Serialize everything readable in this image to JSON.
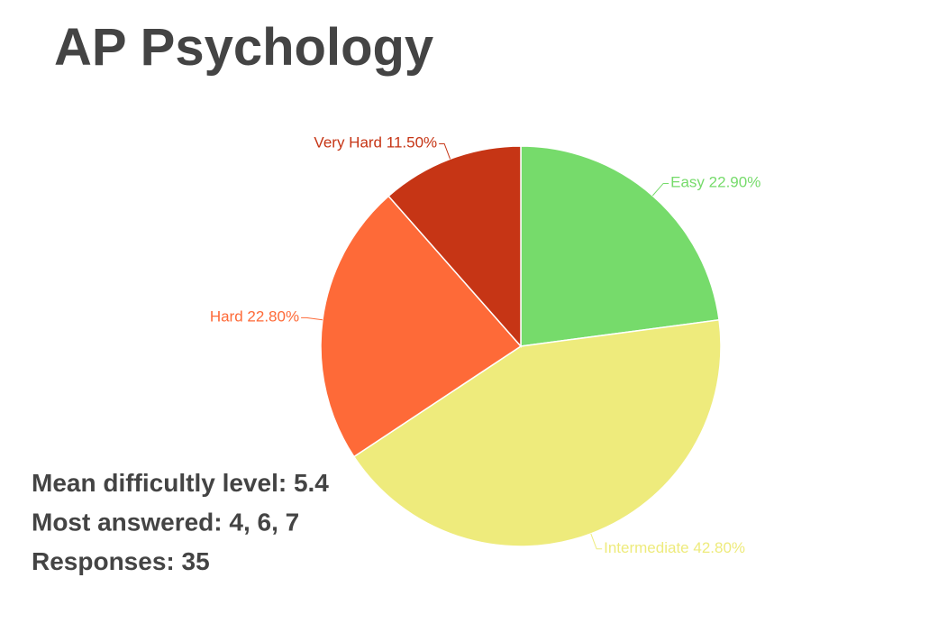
{
  "chart_data": {
    "type": "pie",
    "title": "AP Psychology",
    "categories": [
      "Easy",
      "Intermediate",
      "Hard",
      "Very Hard"
    ],
    "values": [
      22.9,
      42.8,
      22.8,
      11.5
    ],
    "value_labels": [
      "22.90%",
      "42.80%",
      "22.80%",
      "11.50%"
    ],
    "colors": [
      "#76db6b",
      "#eeeb7c",
      "#fe6a38",
      "#c63515"
    ],
    "annotations": [
      "Mean difficultly level: 5.4",
      "Most answered: 4, 6, 7",
      "Responses: 35"
    ]
  }
}
